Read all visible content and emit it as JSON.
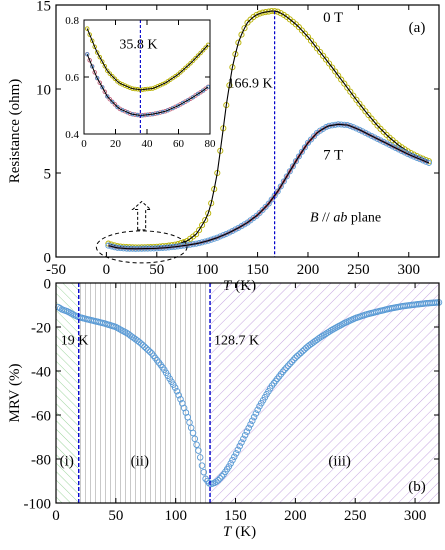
{
  "colors": {
    "yellow_curve": "#b8b000",
    "blue_curve": "#5b9bd5",
    "pink_curve": "#c0607a",
    "fit_line": "#000000",
    "marker_line": "#0000cc",
    "region1_fill": "#9fd59f",
    "region2_fill": "#bbbbbb",
    "region3_fill": "#c6a6e0"
  },
  "chart_data": [
    {
      "type": "line",
      "panel_label": "(a)",
      "xlabel": "T (K)",
      "xlabel_var": "T",
      "xlabel_unit": "(K)",
      "ylabel": "Resistance (ohm)",
      "xlim": [
        -50,
        330
      ],
      "ylim": [
        0,
        15
      ],
      "xticks": [
        -50,
        0,
        50,
        100,
        150,
        200,
        250,
        300
      ],
      "yticks": [
        0,
        5,
        10,
        15
      ],
      "annotations": {
        "peak_label": "166.9 K",
        "peak_T": 166.9,
        "plane_label_b": "B",
        "plane_label_mid": " // ",
        "plane_label_ab": "ab",
        "plane_label_end": " plane"
      },
      "series": [
        {
          "name": "0 T",
          "x": [
            2,
            10,
            20,
            30,
            40,
            50,
            60,
            70,
            80,
            90,
            100,
            105,
            110,
            115,
            120,
            125,
            130,
            135,
            140,
            145,
            150,
            155,
            160,
            165,
            170,
            175,
            180,
            190,
            200,
            210,
            220,
            230,
            240,
            250,
            260,
            270,
            280,
            290,
            300,
            310,
            320
          ],
          "y": [
            0.8,
            0.65,
            0.59,
            0.57,
            0.58,
            0.61,
            0.66,
            0.75,
            0.95,
            1.4,
            2.4,
            3.4,
            5.0,
            7.2,
            9.5,
            11.3,
            12.6,
            13.4,
            13.95,
            14.25,
            14.45,
            14.55,
            14.6,
            14.65,
            14.6,
            14.45,
            14.25,
            13.75,
            13.1,
            12.35,
            11.6,
            10.8,
            10.0,
            9.2,
            8.45,
            7.75,
            7.15,
            6.65,
            6.25,
            5.95,
            5.7
          ]
        },
        {
          "name": "7 T",
          "x": [
            2,
            10,
            20,
            30,
            40,
            50,
            60,
            70,
            80,
            90,
            100,
            110,
            120,
            130,
            140,
            150,
            160,
            170,
            180,
            190,
            200,
            210,
            220,
            230,
            240,
            250,
            260,
            270,
            280,
            290,
            300,
            310,
            320
          ],
          "y": [
            0.68,
            0.55,
            0.5,
            0.49,
            0.5,
            0.52,
            0.56,
            0.62,
            0.7,
            0.8,
            0.95,
            1.15,
            1.4,
            1.7,
            2.05,
            2.5,
            3.1,
            3.9,
            4.9,
            5.9,
            6.8,
            7.45,
            7.8,
            7.9,
            7.85,
            7.6,
            7.3,
            7.0,
            6.7,
            6.4,
            6.1,
            5.85,
            5.6
          ]
        }
      ],
      "series_labels": [
        "0 T",
        "7 T"
      ]
    },
    {
      "type": "line",
      "panel_label": "inset",
      "xlim": [
        0,
        80
      ],
      "ylim": [
        0.4,
        0.8
      ],
      "xticks": [
        0,
        20,
        40,
        60,
        80
      ],
      "yticks": [
        0.4,
        0.6,
        0.8
      ],
      "annotations": {
        "min_label": "35.8 K",
        "min_T": 35.8
      },
      "series": [
        {
          "name": "0 T",
          "x": [
            2,
            8,
            15,
            22,
            30,
            36,
            44,
            52,
            60,
            68,
            75,
            80
          ],
          "y": [
            0.77,
            0.69,
            0.62,
            0.58,
            0.56,
            0.555,
            0.56,
            0.58,
            0.61,
            0.65,
            0.69,
            0.72
          ]
        },
        {
          "name": "7 T",
          "x": [
            2,
            8,
            15,
            22,
            30,
            36,
            44,
            52,
            60,
            68,
            75,
            80
          ],
          "y": [
            0.68,
            0.6,
            0.53,
            0.49,
            0.47,
            0.465,
            0.47,
            0.48,
            0.5,
            0.525,
            0.55,
            0.57
          ]
        }
      ]
    },
    {
      "type": "line",
      "panel_label": "(b)",
      "xlabel": "T (K)",
      "xlabel_var": "T",
      "xlabel_unit": "(K)",
      "ylabel": "MRV (%)",
      "xlim": [
        0,
        320
      ],
      "ylim": [
        -100,
        0
      ],
      "xticks": [
        0,
        50,
        100,
        150,
        200,
        250,
        300
      ],
      "yticks": [
        0,
        -20,
        -40,
        -60,
        -80,
        -100
      ],
      "annotations": {
        "first_label": "19 K",
        "first_T": 19,
        "second_label": "128.7 K",
        "second_T": 128.7,
        "regions": [
          "(i)",
          "(ii)",
          "(iii)"
        ]
      },
      "series": [
        {
          "name": "MRV",
          "x": [
            2,
            5,
            10,
            15,
            19,
            25,
            30,
            40,
            50,
            60,
            70,
            80,
            90,
            100,
            105,
            110,
            115,
            120,
            122,
            125,
            128.7,
            132,
            135,
            140,
            145,
            150,
            160,
            170,
            180,
            190,
            200,
            210,
            220,
            230,
            240,
            250,
            260,
            270,
            280,
            290,
            300,
            310,
            320
          ],
          "y": [
            -11,
            -12,
            -13,
            -14.5,
            -15.5,
            -16.3,
            -17,
            -18.3,
            -20,
            -23,
            -27,
            -32,
            -39,
            -48,
            -54,
            -61,
            -69,
            -78,
            -83,
            -89,
            -91.5,
            -91,
            -90,
            -87,
            -83,
            -78,
            -67,
            -56,
            -47,
            -40,
            -34,
            -29,
            -25,
            -21.5,
            -18.5,
            -16,
            -14.2,
            -12.8,
            -11.5,
            -10.5,
            -9.8,
            -9.2,
            -8.8
          ]
        }
      ]
    }
  ]
}
